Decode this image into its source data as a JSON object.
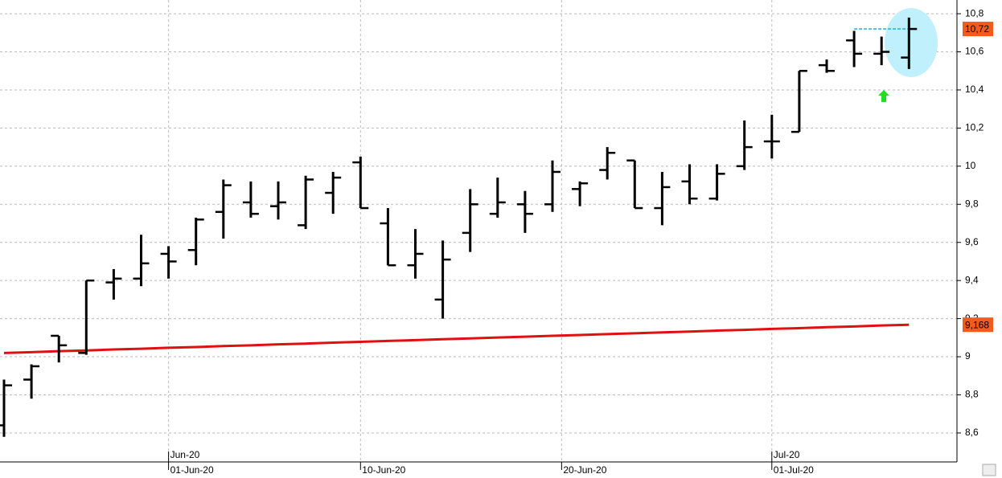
{
  "chart_data": {
    "type": "ohlc",
    "x": [
      "22-May-20",
      "25-May-20",
      "26-May-20",
      "27-May-20",
      "28-May-20",
      "29-May-20",
      "01-Jun-20",
      "02-Jun-20",
      "03-Jun-20",
      "04-Jun-20",
      "05-Jun-20",
      "08-Jun-20",
      "09-Jun-20",
      "10-Jun-20",
      "11-Jun-20",
      "12-Jun-20",
      "15-Jun-20",
      "16-Jun-20",
      "17-Jun-20",
      "18-Jun-20",
      "19-Jun-20",
      "22-Jun-20",
      "23-Jun-20",
      "24-Jun-20",
      "25-Jun-20",
      "26-Jun-20",
      "29-Jun-20",
      "30-Jun-20",
      "01-Jul-20",
      "02-Jul-20",
      "03-Jul-20",
      "06-Jul-20",
      "07-Jul-20",
      "08-Jul-20"
    ],
    "open": [
      8.64,
      8.88,
      9.11,
      9.02,
      9.39,
      9.41,
      9.54,
      9.56,
      9.76,
      9.81,
      9.79,
      9.69,
      9.86,
      10.02,
      9.7,
      9.48,
      9.3,
      9.65,
      9.75,
      9.8,
      9.8,
      9.88,
      9.98,
      10.03,
      9.78,
      9.92,
      9.83,
      10.0,
      10.13,
      10.18,
      10.53,
      10.66,
      10.59,
      10.57
    ],
    "high": [
      8.88,
      8.96,
      9.11,
      9.4,
      9.46,
      9.64,
      9.58,
      9.73,
      9.93,
      9.92,
      9.92,
      9.95,
      9.97,
      10.05,
      9.78,
      9.67,
      9.61,
      9.88,
      9.94,
      9.87,
      10.03,
      9.92,
      10.1,
      10.03,
      9.97,
      10.01,
      10.01,
      10.24,
      10.27,
      10.5,
      10.56,
      10.71,
      10.68,
      10.78
    ],
    "low": [
      8.58,
      8.78,
      8.97,
      9.01,
      9.3,
      9.37,
      9.41,
      9.48,
      9.62,
      9.73,
      9.72,
      9.67,
      9.75,
      9.78,
      9.48,
      9.41,
      9.2,
      9.55,
      9.73,
      9.65,
      9.76,
      9.79,
      9.93,
      9.78,
      9.69,
      9.8,
      9.82,
      9.98,
      10.04,
      10.18,
      10.49,
      10.52,
      10.53,
      10.51
    ],
    "close": [
      8.85,
      8.95,
      9.06,
      9.4,
      9.41,
      9.49,
      9.5,
      9.72,
      9.9,
      9.75,
      9.81,
      9.93,
      9.94,
      9.78,
      9.48,
      9.54,
      9.51,
      9.8,
      9.81,
      9.75,
      9.97,
      9.91,
      10.07,
      9.78,
      9.89,
      9.83,
      9.96,
      10.1,
      10.13,
      10.5,
      10.5,
      10.59,
      10.6,
      10.72
    ],
    "color": "#000000",
    "moving_average": {
      "color": "#e01010",
      "values": [
        9.02,
        9.024,
        9.029,
        9.033,
        9.038,
        9.042,
        9.047,
        9.051,
        9.056,
        9.06,
        9.065,
        9.069,
        9.074,
        9.078,
        9.083,
        9.087,
        9.092,
        9.096,
        9.101,
        9.105,
        9.11,
        9.114,
        9.119,
        9.123,
        9.128,
        9.132,
        9.137,
        9.141,
        9.146,
        9.15,
        9.155,
        9.159,
        9.164,
        9.168
      ]
    },
    "last_labels": [
      {
        "value": 10.72,
        "label": "10,72"
      },
      {
        "value": 9.168,
        "label": "9,168"
      }
    ],
    "ylim": [
      8.448,
      10.872
    ],
    "yticks": [
      {
        "value": 8.6,
        "label": "8,6"
      },
      {
        "value": 8.8,
        "label": "8,8"
      },
      9,
      {
        "value": 9.2,
        "label": "9,2"
      },
      {
        "value": 9.4,
        "label": "9,4"
      },
      {
        "value": 9.6,
        "label": "9,6"
      },
      {
        "value": 9.8,
        "label": "9,8"
      },
      10,
      {
        "value": 10.2,
        "label": "10,2"
      },
      {
        "value": 10.4,
        "label": "10,4"
      },
      {
        "value": 10.6,
        "label": "10,6"
      },
      {
        "value": 10.8,
        "label": "10,8"
      }
    ],
    "xticks": [
      "01-Jun-20",
      "10-Jun-20",
      "20-Jun-20",
      "01-Jul-20"
    ],
    "month_ticks": [
      "Jun-20",
      "Jul-20"
    ],
    "grid": true
  }
}
